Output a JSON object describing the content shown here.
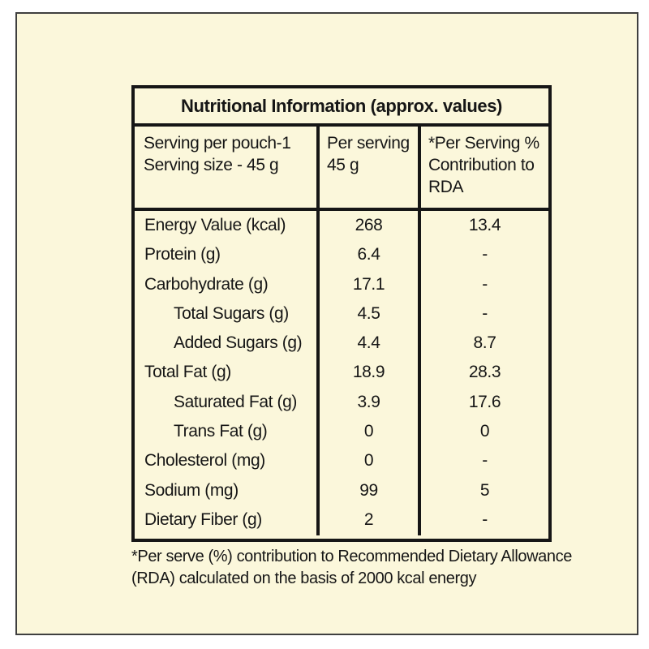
{
  "panel": {
    "background_color": "#fbf7db",
    "frame_border_color": "#3f3f3f",
    "table_border_color": "#161616"
  },
  "table": {
    "title": "Nutritional Information (approx. values)",
    "header": {
      "col1_line1": "Serving per pouch-1",
      "col1_line2": "Serving size - 45 g",
      "col2_line1": "Per serving",
      "col2_line2": "45 g",
      "col3_line1": "*Per Serving %",
      "col3_line2": "Contribution to",
      "col3_line3": "RDA"
    },
    "rows": [
      {
        "label": "Energy Value (kcal)",
        "per_serving": "268",
        "rda": "13.4"
      },
      {
        "label": "Protein (g)",
        "per_serving": "6.4",
        "rda": "-"
      },
      {
        "label": "Carbohydrate (g)",
        "per_serving": "17.1",
        "rda": "-"
      },
      {
        "label": "Total Sugars (g)",
        "per_serving": "4.5",
        "rda": "-"
      },
      {
        "label": "Added Sugars (g)",
        "per_serving": "4.4",
        "rda": "8.7"
      },
      {
        "label": "Total Fat (g)",
        "per_serving": "18.9",
        "rda": "28.3"
      },
      {
        "label": "Saturated Fat (g)",
        "per_serving": "3.9",
        "rda": "17.6"
      },
      {
        "label": "Trans Fat (g)",
        "per_serving": "0",
        "rda": "0"
      },
      {
        "label": "Cholesterol (mg)",
        "per_serving": "0",
        "rda": "-"
      },
      {
        "label": "Sodium (mg)",
        "per_serving": "99",
        "rda": "5"
      },
      {
        "label": "Dietary Fiber (g)",
        "per_serving": "2",
        "rda": "-"
      }
    ]
  },
  "footnote": {
    "line1": "*Per serve (%) contribution to Recommended Dietary Allowance",
    "line2": "(RDA) calculated on the basis of 2000 kcal energy"
  }
}
